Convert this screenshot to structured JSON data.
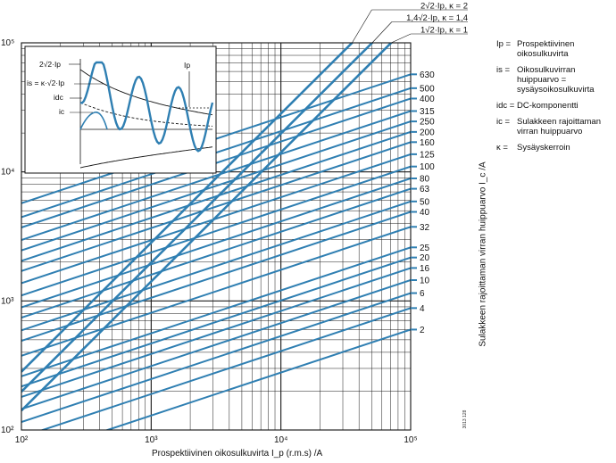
{
  "chart_data": {
    "type": "line",
    "xscale": "log",
    "yscale": "log",
    "xlim": [
      100,
      100000
    ],
    "ylim": [
      100,
      100000
    ],
    "x_ticks": [
      "10²",
      "10³",
      "10⁴",
      "10⁵"
    ],
    "y_ticks": [
      "10²",
      "10³",
      "10⁴",
      "10⁵"
    ],
    "xlabel": "Prospektiivinen oikosulkuvirta I_p (r.m.s) /A",
    "ylabel": "Sulakkeen rajoittaman virran huippuarvo I_c /A",
    "grid": true,
    "reference_lines": [
      {
        "label": "2√2·Ip, κ = 2",
        "factor": 2.828
      },
      {
        "label": "1,4√2·Ip, κ = 1,4",
        "factor": 1.98
      },
      {
        "label": "1√2·Ip, κ = 1",
        "factor": 1.414
      }
    ],
    "fuse_rating_unit": "A",
    "fuse_slope": 0.333,
    "fuse_curves": [
      {
        "rating": "630",
        "x_end": 100000,
        "y_end": 57000
      },
      {
        "rating": "500",
        "x_end": 100000,
        "y_end": 44500
      },
      {
        "rating": "400",
        "x_end": 100000,
        "y_end": 37000
      },
      {
        "rating": "315",
        "x_end": 100000,
        "y_end": 29600
      },
      {
        "rating": "250",
        "x_end": 100000,
        "y_end": 24600
      },
      {
        "rating": "200",
        "x_end": 100000,
        "y_end": 20400
      },
      {
        "rating": "160",
        "x_end": 100000,
        "y_end": 17000
      },
      {
        "rating": "125",
        "x_end": 100000,
        "y_end": 13700
      },
      {
        "rating": "100",
        "x_end": 100000,
        "y_end": 11000
      },
      {
        "rating": "80",
        "x_end": 100000,
        "y_end": 8900
      },
      {
        "rating": "63",
        "x_end": 100000,
        "y_end": 7400
      },
      {
        "rating": "50",
        "x_end": 100000,
        "y_end": 5900
      },
      {
        "rating": "40",
        "x_end": 100000,
        "y_end": 4900
      },
      {
        "rating": "32",
        "x_end": 100000,
        "y_end": 3750
      },
      {
        "rating": "25",
        "x_end": 100000,
        "y_end": 2600
      },
      {
        "rating": "20",
        "x_end": 100000,
        "y_end": 2170
      },
      {
        "rating": "16",
        "x_end": 100000,
        "y_end": 1800
      },
      {
        "rating": "10",
        "x_end": 100000,
        "y_end": 1450
      },
      {
        "rating": "6",
        "x_end": 100000,
        "y_end": 1150
      },
      {
        "rating": "4",
        "x_end": 100000,
        "y_end": 880
      },
      {
        "rating": "2",
        "x_end": 100000,
        "y_end": 600
      }
    ],
    "inset": {
      "labels": [
        "2√2·Ip",
        "is = κ·√2·Ip",
        "idc",
        "ic",
        "Ip"
      ]
    }
  },
  "legend": [
    {
      "symbol": "Ip =",
      "text": "Prospektiivinen oikosulkuvirta"
    },
    {
      "symbol": "is =",
      "text": "Oikosulkuvirran huippuarvo = sysäysoikosulkuvirta"
    },
    {
      "symbol": "idc =",
      "text": "DC-komponentti"
    },
    {
      "symbol": "ic =",
      "text": "Sulakkeen rajoittaman virran huippuarvo"
    },
    {
      "symbol": "κ =",
      "text": "Sysäyskerroin"
    }
  ],
  "doc_code": "3013 128",
  "colors": {
    "curve": "#2f7fb2",
    "grid": "#1a1a1a",
    "text": "#111111"
  }
}
